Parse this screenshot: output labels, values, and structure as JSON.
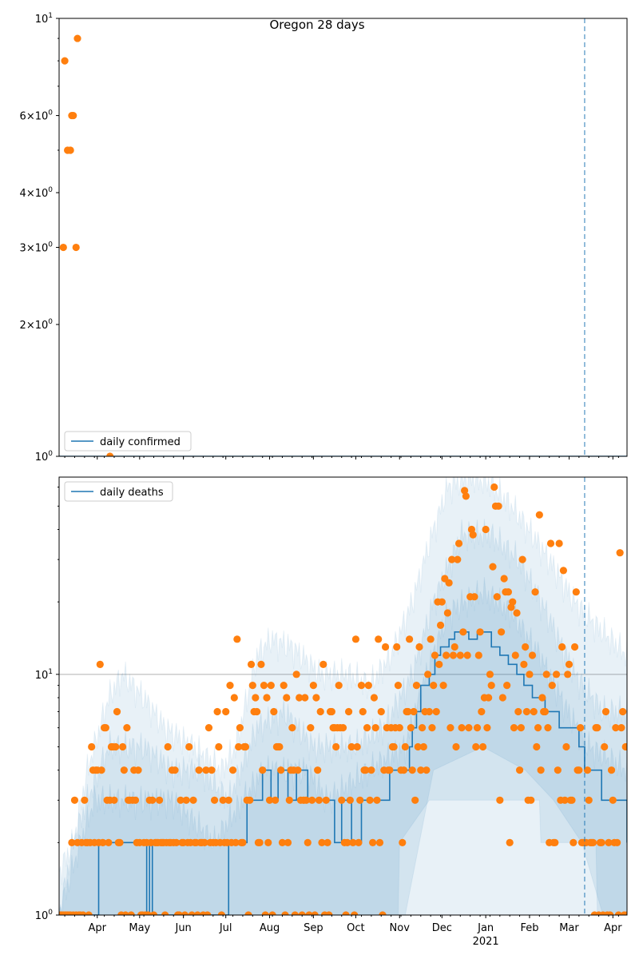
{
  "chart_data": [
    {
      "type": "scatter",
      "title": "Oregon 28 days",
      "yscale": "log",
      "ylim": [
        1,
        10
      ],
      "start_date": "2020-03-05",
      "end_date": "2021-04-11",
      "legend": {
        "label": "daily confirmed",
        "placement": "bottom-left"
      },
      "y_tick_labels": [
        {
          "value": 10,
          "base": "10",
          "exp": "1"
        },
        {
          "value": 6,
          "base": "6×10",
          "exp": "0"
        },
        {
          "value": 4,
          "base": "4×10",
          "exp": "0"
        },
        {
          "value": 3,
          "base": "3×10",
          "exp": "0"
        },
        {
          "value": 2,
          "base": "2×10",
          "exp": "0"
        },
        {
          "value": 1,
          "base": "10",
          "exp": "0"
        }
      ],
      "observed_points": [
        [
          3,
          3
        ],
        [
          4,
          8
        ],
        [
          6,
          5
        ],
        [
          8,
          5
        ],
        [
          9,
          6
        ],
        [
          10,
          6
        ],
        [
          12,
          3
        ],
        [
          13,
          9
        ],
        [
          36,
          1
        ]
      ],
      "fit_line": [
        [
          0,
          1
        ],
        [
          402,
          1
        ]
      ],
      "forecast_marker_day": 372
    },
    {
      "type": "scatter",
      "yscale": "log",
      "ylim": [
        1,
        66
      ],
      "start_date": "2020-03-05",
      "end_date": "2021-04-11",
      "legend": {
        "label": "daily deaths",
        "placement": "top-left"
      },
      "grid": "y major at 10",
      "y_tick_labels": [
        {
          "value": 10,
          "base": "10",
          "exp": "1"
        },
        {
          "value": 1,
          "base": "10",
          "exp": "0"
        }
      ],
      "x_tick_labels": [
        {
          "date": "2020-04-01",
          "label": "Apr"
        },
        {
          "date": "2020-05-01",
          "label": "May"
        },
        {
          "date": "2020-06-01",
          "label": "Jun"
        },
        {
          "date": "2020-07-01",
          "label": "Jul"
        },
        {
          "date": "2020-08-01",
          "label": "Aug"
        },
        {
          "date": "2020-09-01",
          "label": "Sep"
        },
        {
          "date": "2020-10-01",
          "label": "Oct"
        },
        {
          "date": "2020-11-01",
          "label": "Nov"
        },
        {
          "date": "2020-12-01",
          "label": "Dec"
        },
        {
          "date": "2021-01-01",
          "label": "Jan",
          "sub": "2021"
        },
        {
          "date": "2021-02-01",
          "label": "Feb"
        },
        {
          "date": "2021-03-01",
          "label": "Mar"
        },
        {
          "date": "2021-04-01",
          "label": "Apr"
        }
      ],
      "observed_daily": [
        1,
        1,
        1,
        1,
        1,
        1,
        1,
        1,
        1,
        2,
        1,
        3,
        1,
        2,
        1,
        1,
        2,
        1,
        3,
        2,
        2,
        1,
        2,
        5,
        4,
        2,
        4,
        4,
        2,
        11,
        4,
        2,
        6,
        6,
        3,
        2,
        3,
        5,
        5,
        3,
        5,
        7,
        2,
        2,
        1,
        5,
        4,
        1,
        6,
        3,
        3,
        1,
        3,
        4,
        3,
        2,
        4,
        2,
        1,
        1,
        2,
        1,
        2,
        1,
        3,
        2,
        3,
        1,
        2,
        2,
        2,
        3,
        2,
        2,
        2,
        1,
        2,
        5,
        2,
        2,
        4,
        2,
        4,
        2,
        1,
        1,
        3,
        2,
        2,
        1,
        3,
        2,
        5,
        2,
        1,
        3,
        2,
        2,
        1,
        4,
        2,
        2,
        1,
        2,
        4,
        1,
        6,
        2,
        4,
        2,
        3,
        2,
        7,
        5,
        2,
        1,
        3,
        2,
        7,
        2,
        3,
        9,
        2,
        4,
        8,
        2,
        14,
        5,
        6,
        2,
        2,
        5,
        5,
        3,
        1,
        3,
        11,
        9,
        7,
        8,
        7,
        2,
        2,
        11,
        4,
        9,
        1,
        8,
        2,
        3,
        9,
        1,
        7,
        3,
        5,
        5,
        5,
        4,
        2,
        9,
        1,
        8,
        2,
        3,
        4,
        6,
        4,
        1,
        10,
        4,
        8,
        3,
        1,
        3,
        8,
        3,
        2,
        1,
        6,
        3,
        9,
        1,
        8,
        4,
        3,
        7,
        2,
        11,
        1,
        3,
        2,
        1,
        7,
        7,
        6,
        6,
        5,
        6,
        9,
        6,
        3,
        6,
        2,
        1,
        2,
        7,
        3,
        5,
        2,
        1,
        14,
        5,
        2,
        3,
        9,
        7,
        4,
        4,
        6,
        9,
        3,
        4,
        2,
        8,
        6,
        3,
        14,
        2,
        7,
        1,
        4,
        13,
        6,
        4,
        4,
        6,
        5,
        5,
        6,
        13,
        9,
        6,
        4,
        2,
        4,
        5,
        7,
        7,
        14,
        6,
        4,
        7,
        3,
        9,
        5,
        13,
        4,
        6,
        5,
        7,
        4,
        10,
        7,
        14,
        6,
        9,
        12,
        7,
        20,
        11,
        16,
        20,
        9,
        25,
        12,
        18,
        24,
        6,
        30,
        12,
        13,
        5,
        30,
        35,
        12,
        6,
        15,
        58,
        55,
        12,
        6,
        21,
        40,
        38,
        21,
        5,
        6,
        12,
        15,
        7,
        5,
        8,
        40,
        6,
        8,
        10,
        9,
        28,
        60,
        50,
        21,
        50,
        3,
        15,
        8,
        25,
        22,
        9,
        22,
        2,
        19,
        20,
        6,
        12,
        18,
        7,
        4,
        6,
        30,
        11,
        13,
        7,
        3,
        10,
        3,
        12,
        7,
        22,
        5,
        6,
        46,
        4,
        8,
        7,
        7,
        10,
        6,
        2,
        35,
        9,
        2,
        2,
        10,
        4,
        35,
        3,
        13,
        27,
        3,
        5,
        10,
        11,
        3,
        3,
        2,
        13,
        22,
        4,
        4,
        6,
        2,
        2,
        2,
        2,
        4,
        3,
        2,
        2,
        2,
        1,
        6,
        6,
        1,
        2,
        2,
        1,
        5,
        7,
        1,
        2,
        1,
        4,
        3,
        2,
        6,
        2,
        1,
        32,
        6,
        7,
        1,
        5,
        1
      ],
      "fit_line": [
        [
          0,
          1
        ],
        [
          27,
          1
        ],
        [
          28,
          2
        ],
        [
          61,
          2
        ],
        [
          62,
          1
        ],
        [
          64,
          2
        ],
        [
          66,
          1
        ],
        [
          119,
          1
        ],
        [
          120,
          2
        ],
        [
          133,
          3
        ],
        [
          144,
          4
        ],
        [
          150,
          3
        ],
        [
          155,
          4
        ],
        [
          162,
          3
        ],
        [
          168,
          4
        ],
        [
          176,
          3
        ],
        [
          189,
          3
        ],
        [
          195,
          2
        ],
        [
          200,
          3
        ],
        [
          207,
          2
        ],
        [
          214,
          3
        ],
        [
          222,
          3
        ],
        [
          234,
          4
        ],
        [
          246,
          4
        ],
        [
          248,
          5
        ],
        [
          250,
          6
        ],
        [
          253,
          7
        ],
        [
          256,
          9
        ],
        [
          262,
          10
        ],
        [
          266,
          12
        ],
        [
          270,
          13
        ],
        [
          276,
          14
        ],
        [
          280,
          15
        ],
        [
          290,
          14
        ],
        [
          296,
          15
        ],
        [
          306,
          13
        ],
        [
          312,
          12
        ],
        [
          318,
          11
        ],
        [
          324,
          10
        ],
        [
          329,
          9
        ],
        [
          335,
          8
        ],
        [
          344,
          7
        ],
        [
          354,
          6
        ],
        [
          368,
          5
        ],
        [
          372,
          4
        ],
        [
          384,
          3
        ],
        [
          401,
          3
        ],
        [
          402,
          2
        ]
      ],
      "bands": [
        {
          "name": "outer",
          "lower": [
            [
              0,
              1
            ],
            [
              402,
              1
            ]
          ],
          "upper": [
            [
              0,
              1.5
            ],
            [
              10,
              2
            ],
            [
              20,
              4
            ],
            [
              35,
              8
            ],
            [
              45,
              10
            ],
            [
              60,
              8
            ],
            [
              75,
              6
            ],
            [
              95,
              5
            ],
            [
              115,
              4
            ],
            [
              125,
              5
            ],
            [
              140,
              12
            ],
            [
              150,
              14
            ],
            [
              165,
              13
            ],
            [
              185,
              10
            ],
            [
              205,
              10
            ],
            [
              220,
              9
            ],
            [
              235,
              12
            ],
            [
              250,
              20
            ],
            [
              262,
              35
            ],
            [
              275,
              60
            ],
            [
              290,
              66
            ],
            [
              305,
              62
            ],
            [
              320,
              50
            ],
            [
              335,
              38
            ],
            [
              350,
              28
            ],
            [
              365,
              20
            ],
            [
              380,
              16
            ],
            [
              402,
              12
            ]
          ]
        },
        {
          "name": "middle",
          "lower": [
            [
              0,
              1
            ],
            [
              240,
              1
            ],
            [
              241,
              2
            ],
            [
              262,
              3
            ],
            [
              340,
              3
            ],
            [
              341,
              2
            ],
            [
              380,
              2
            ],
            [
              381,
              1
            ],
            [
              402,
              1
            ]
          ],
          "upper": [
            [
              0,
              1
            ],
            [
              10,
              2
            ],
            [
              20,
              3
            ],
            [
              35,
              5
            ],
            [
              60,
              5
            ],
            [
              80,
              4
            ],
            [
              100,
              4
            ],
            [
              120,
              3
            ],
            [
              140,
              6
            ],
            [
              160,
              7
            ],
            [
              180,
              5
            ],
            [
              210,
              5
            ],
            [
              230,
              6
            ],
            [
              250,
              10
            ],
            [
              265,
              20
            ],
            [
              285,
              38
            ],
            [
              305,
              38
            ],
            [
              325,
              30
            ],
            [
              345,
              18
            ],
            [
              365,
              10
            ],
            [
              385,
              7
            ],
            [
              402,
              7
            ]
          ]
        },
        {
          "name": "inner",
          "lower": [
            [
              0,
              1
            ],
            [
              245,
              1
            ],
            [
              255,
              2
            ],
            [
              265,
              4
            ],
            [
              300,
              5
            ],
            [
              330,
              4
            ],
            [
              350,
              3
            ],
            [
              370,
              2
            ],
            [
              385,
              1
            ],
            [
              402,
              1
            ]
          ],
          "upper": [
            [
              0,
              1
            ],
            [
              15,
              2
            ],
            [
              25,
              3
            ],
            [
              80,
              3
            ],
            [
              110,
              2
            ],
            [
              130,
              3
            ],
            [
              145,
              4
            ],
            [
              175,
              4
            ],
            [
              190,
              3
            ],
            [
              220,
              4
            ],
            [
              245,
              5
            ],
            [
              260,
              10
            ],
            [
              275,
              18
            ],
            [
              300,
              22
            ],
            [
              320,
              18
            ],
            [
              340,
              12
            ],
            [
              360,
              7
            ],
            [
              375,
              5
            ],
            [
              402,
              4
            ]
          ]
        }
      ],
      "forecast_marker_day": 372
    }
  ],
  "colors": {
    "fit": "#1f77b4",
    "observed": "#ff7f0e",
    "band": "#1f77b4",
    "grid": "#b0b0b0",
    "marker": "#1f77b4"
  }
}
